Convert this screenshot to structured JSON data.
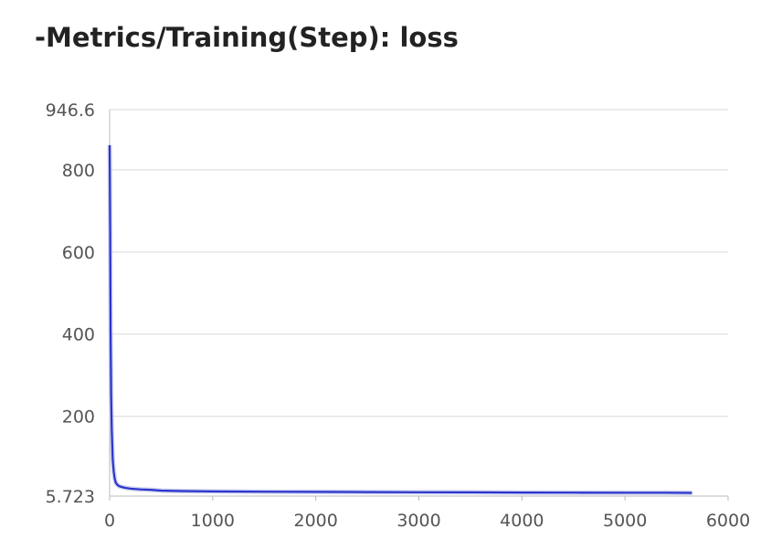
{
  "colors": {
    "series": "#2b35cc",
    "series_raw": "#b9bde8",
    "grid": "#d9d9d9",
    "axis": "#bbbbbb",
    "text": "#555555"
  },
  "chart_data": {
    "type": "line",
    "title": "-Metrics/Training(Step): loss",
    "xlabel": "",
    "ylabel": "",
    "xlim": [
      0,
      6000
    ],
    "ylim": [
      5.723,
      946.6
    ],
    "x_ticks": [
      "0",
      "1000",
      "2000",
      "3000",
      "4000",
      "5000",
      "6000"
    ],
    "y_ticks": [
      "946.6",
      "800",
      "600",
      "400",
      "200",
      "5.723"
    ],
    "grid": true,
    "legend": "none",
    "series": [
      {
        "x": [
          0,
          5,
          10,
          15,
          20,
          30,
          40,
          50,
          60,
          80,
          100,
          150,
          200,
          300,
          400,
          500,
          700,
          1000,
          1500,
          2000,
          2500,
          3000,
          3500,
          4000,
          4500,
          5000,
          5400,
          5650
        ],
        "y": [
          860,
          650,
          400,
          250,
          170,
          95,
          65,
          48,
          38,
          32,
          29,
          26,
          24,
          22,
          21,
          19,
          18,
          17,
          16.5,
          16,
          15.5,
          15,
          14.8,
          14.5,
          14.2,
          14,
          14,
          13.5
        ]
      }
    ]
  }
}
